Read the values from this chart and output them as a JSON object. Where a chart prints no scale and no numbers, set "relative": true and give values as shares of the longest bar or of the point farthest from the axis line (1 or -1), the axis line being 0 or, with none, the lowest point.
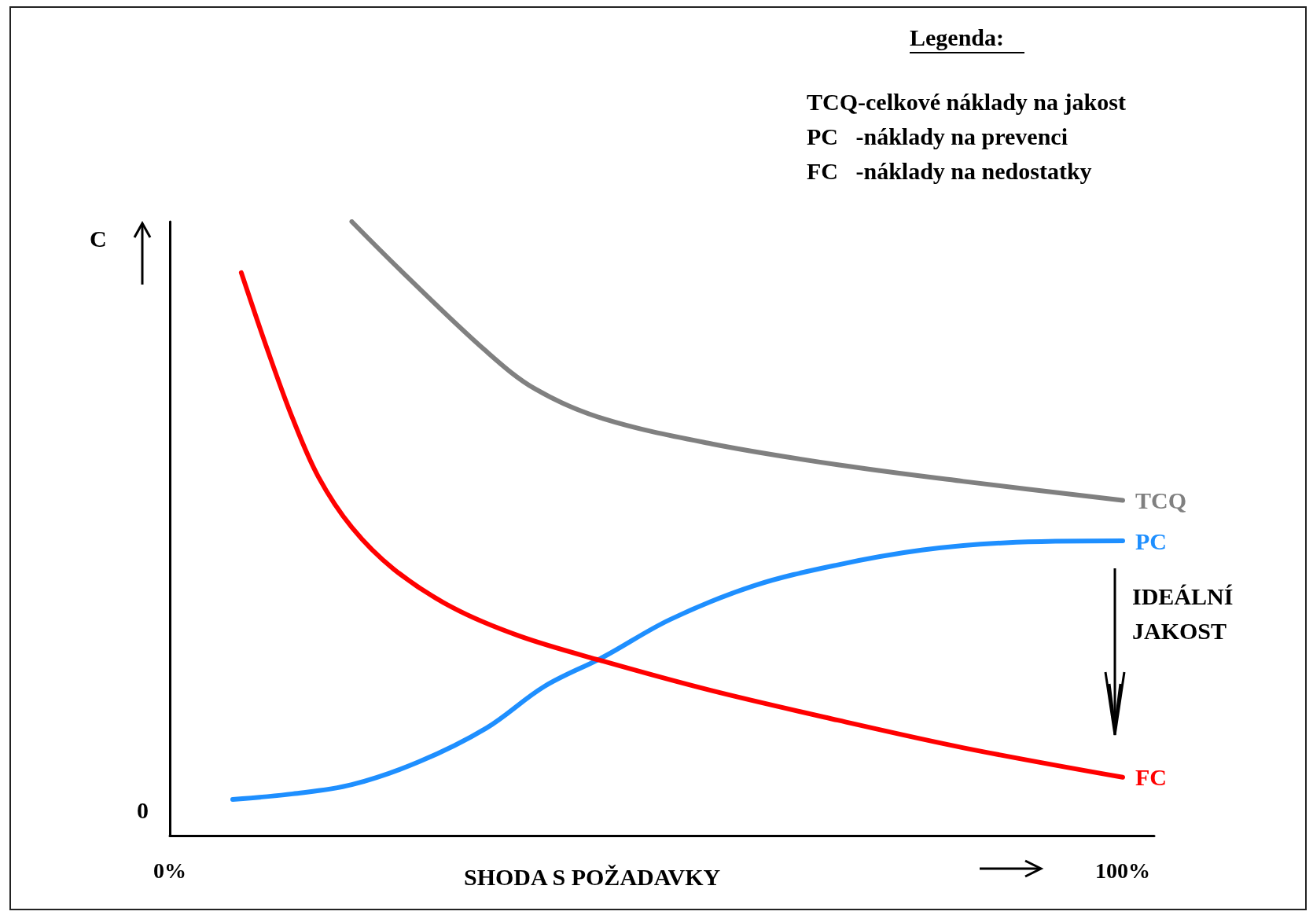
{
  "chart_data": {
    "type": "line",
    "relative": true,
    "xlabel": "SHODA S POŽADAVKY",
    "ylabel": "C",
    "legend_title": "Legenda:",
    "legend": false,
    "grid": false,
    "marker": "none",
    "line_style": "solid",
    "xlim": [
      0,
      103.3
    ],
    "xticks": [
      {
        "value": 0,
        "label": "0%"
      },
      {
        "value": 100,
        "label": "100%"
      }
    ],
    "annotations": [
      "TCQ-celkové náklady na jakost",
      "PC   -náklady na prevenci",
      "FC   -náklady na nedostatky",
      "IDEÁLNÍ JAKOST",
      "0"
    ],
    "series": [
      {
        "name": "TCQ",
        "color": "#808080",
        "x": [
          19.1,
          24.4,
          33.2,
          38.4,
          45.5,
          56.9,
          70.1,
          83.3,
          100
        ],
        "values": [
          1,
          0.918,
          0.789,
          0.727,
          0.679,
          0.638,
          0.604,
          0.577,
          0.546
        ]
      },
      {
        "name": "PC",
        "color": "#1e8fff",
        "x": [
          6.6,
          12.9,
          19.1,
          26.1,
          33.2,
          39.3,
          45.5,
          52.5,
          61.3,
          70.1,
          78.9,
          87.7,
          100
        ],
        "values": [
          0.059,
          0.068,
          0.083,
          0.12,
          0.175,
          0.243,
          0.291,
          0.352,
          0.407,
          0.441,
          0.465,
          0.477,
          0.48
        ]
      },
      {
        "name": "FC",
        "color": "#ff0000",
        "x": [
          7.5,
          10.3,
          12.9,
          15.6,
          19.1,
          23.5,
          29.6,
          36.7,
          45.5,
          56.9,
          70.1,
          83.3,
          100
        ],
        "values": [
          0.917,
          0.789,
          0.679,
          0.584,
          0.502,
          0.434,
          0.372,
          0.325,
          0.284,
          0.236,
          0.188,
          0.143,
          0.095
        ]
      }
    ]
  }
}
